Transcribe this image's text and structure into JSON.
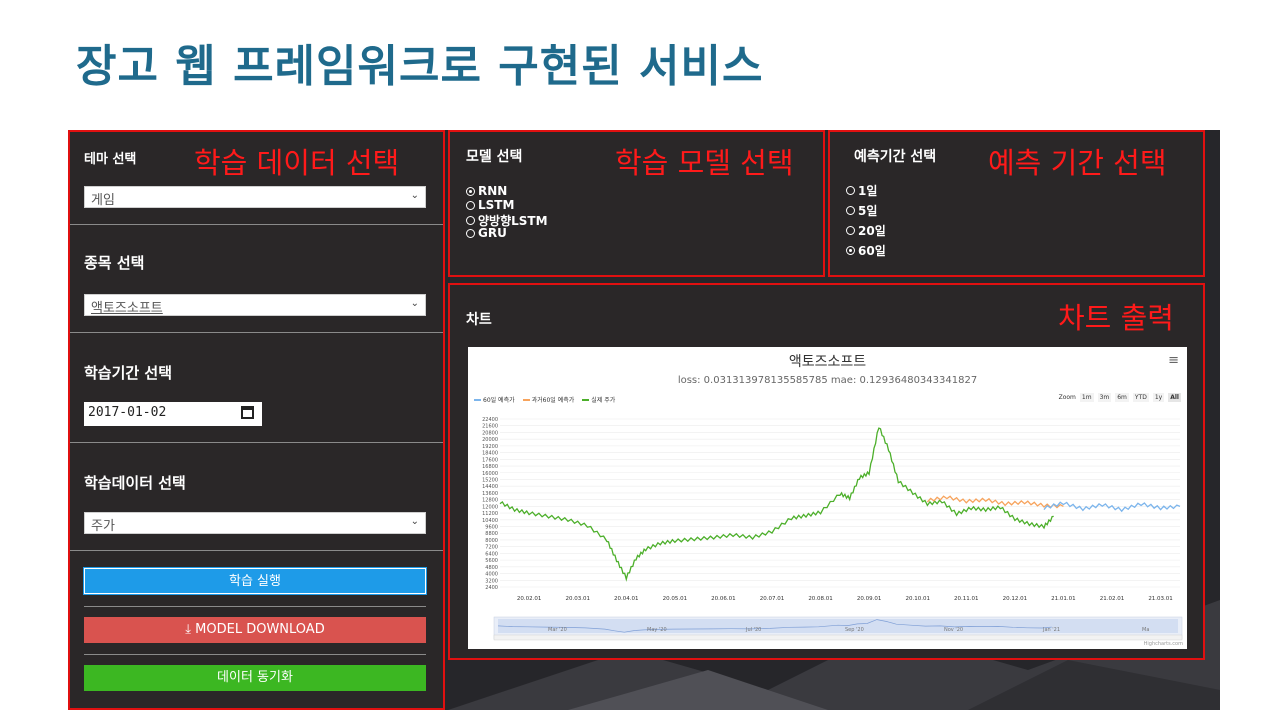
{
  "slide_title": "장고 웹 프레임워크로 구현된 서비스",
  "annotations": {
    "left": "학습 데이터 선택",
    "model": "학습 모델 선택",
    "period": "예측 기간 선택",
    "chart": "차트 출력"
  },
  "left_panel": {
    "theme_label": "테마 선택",
    "theme_value": "게임",
    "stock_label": "종목 선택",
    "stock_value": "액토즈소프트",
    "period_label": "학습기간 선택",
    "start_date": "2017-01-02",
    "data_label": "학습데이터 선택",
    "data_value": "주가",
    "train_button": "학습 실행",
    "download_button": "⤓ MODEL DOWNLOAD",
    "sync_button": "데이터 동기화"
  },
  "model_panel": {
    "title": "모델 선택",
    "options": [
      "RNN",
      "LSTM",
      "양방향LSTM",
      "GRU"
    ],
    "selected": "RNN"
  },
  "period_panel": {
    "title": "예측기간 선택",
    "options": [
      "1일",
      "5일",
      "20일",
      "60일"
    ],
    "selected": "60일"
  },
  "chart_panel": {
    "title": "차트",
    "menu_icon": "≡"
  },
  "colors": {
    "title": "#1f6a8c",
    "annotation": "#ff1a1a",
    "pred60": "#7cb5ec",
    "past60": "#f7a35c",
    "actual": "#4caf2a"
  },
  "chart_data": {
    "type": "line",
    "title": "액토즈소프트",
    "subtitle": "loss: 0.031313978135585785 mae: 0.12936480343341827",
    "legend": [
      "60일 예측가",
      "과거60일 예측가",
      "실제 주가"
    ],
    "legend_placement": "top-left",
    "zoom_label": "Zoom",
    "zoom_buttons": [
      "1m",
      "3m",
      "6m",
      "YTD",
      "1y",
      "All"
    ],
    "zoom_selected": "All",
    "credits": "Highcharts.com",
    "ylim": [
      2400,
      22400
    ],
    "y_ticks": [
      22400,
      21600,
      20800,
      20000,
      19200,
      18400,
      17600,
      16800,
      16000,
      15200,
      14400,
      13600,
      12800,
      12000,
      11200,
      10400,
      9600,
      8800,
      8000,
      7200,
      6400,
      5600,
      4800,
      4000,
      3200,
      2400
    ],
    "x_ticks": [
      "20.02.01",
      "20.03.01",
      "20.04.01",
      "20.05.01",
      "20.06.01",
      "20.07.01",
      "20.08.01",
      "20.09.01",
      "20.10.01",
      "20.11.01",
      "20.12.01",
      "21.01.01",
      "21.02.01",
      "21.03.01"
    ],
    "navigator_ticks": [
      "Mar '20",
      "May '20",
      "Jul '20",
      "Sep '20",
      "Nov '20",
      "Jan '21",
      "Ma"
    ],
    "x_range": [
      0,
      14
    ],
    "series": [
      {
        "name": "실제 주가",
        "x": [
          0,
          0.3,
          0.6,
          1.0,
          1.4,
          1.8,
          2.2,
          2.4,
          2.6,
          2.8,
          3.0,
          3.3,
          3.6,
          4.0,
          4.4,
          4.8,
          5.2,
          5.6,
          6.0,
          6.3,
          6.6,
          7.0,
          7.2,
          7.4,
          7.6,
          7.8,
          8.0,
          8.2,
          8.5,
          8.8,
          9.1,
          9.4,
          9.7,
          10.0,
          10.3,
          10.6,
          10.9,
          11.2,
          11.4
        ],
        "values": [
          12500,
          11600,
          11200,
          10800,
          10400,
          9700,
          8000,
          5600,
          3500,
          5800,
          6900,
          7600,
          7900,
          8100,
          8300,
          8600,
          8300,
          9000,
          10600,
          10900,
          11300,
          13500,
          13000,
          15400,
          16000,
          21500,
          18800,
          15000,
          13600,
          12300,
          12600,
          11100,
          11800,
          11600,
          11900,
          10500,
          9900,
          9600,
          10800
        ]
      },
      {
        "name": "과거60일 예측가",
        "x": [
          8.8,
          9.2,
          9.6,
          10.0,
          10.4,
          10.8,
          11.2,
          11.6
        ],
        "values": [
          12700,
          13100,
          12600,
          12800,
          12300,
          12500,
          12100,
          12000
        ]
      },
      {
        "name": "60일 예측가",
        "x": [
          11.2,
          11.6,
          12.0,
          12.4,
          12.8,
          13.2,
          13.6,
          14.0
        ],
        "values": [
          11800,
          12400,
          11700,
          12200,
          11600,
          12300,
          11800,
          12000
        ]
      }
    ]
  }
}
